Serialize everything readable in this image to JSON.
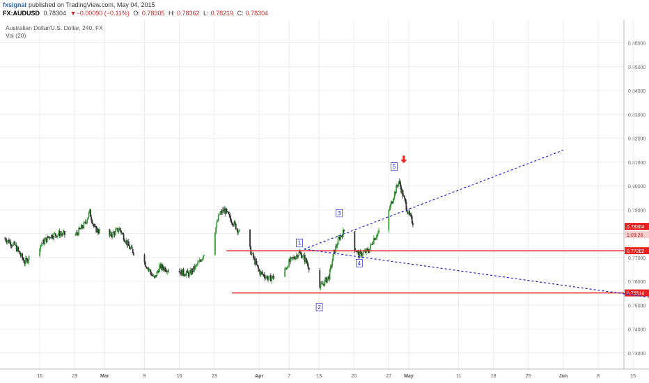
{
  "header": {
    "username": "fxsignal",
    "published": "published on TradingView.com, May 04, 2015",
    "symbol": "FX:AUDUSD",
    "price": "0.78304",
    "change": "▼−0.00090 (−0.11%)",
    "o_label": "O:",
    "o_value": "0.78305",
    "h_label": "H:",
    "h_value": "0.78362",
    "l_label": "L:",
    "l_value": "0.78219",
    "c_label": "C:",
    "c_value": "0.78304"
  },
  "legend": {
    "title": "Australian Dollar/U.S. Dollar, 240, FX",
    "volume": "Vol (20)"
  },
  "colors": {
    "up": "#3a9a3a",
    "down": "#2f2f2f",
    "trendline": "#1f1fd0",
    "level": "#e8201e",
    "arrow": "#e8201e",
    "grid": "#ececec"
  },
  "chart_data": {
    "type": "candlestick",
    "xaxis_ticks": [
      "16",
      "23",
      "Mar",
      "9",
      "16",
      "23",
      "Apr",
      "7",
      "13",
      "20",
      "27",
      "May",
      "11",
      "18",
      "25",
      "Jun",
      "8",
      "15"
    ],
    "ylim": [
      0.725,
      0.865
    ],
    "yaxis_ticks": [
      "0.86000",
      "0.85000",
      "0.84000",
      "0.83000",
      "0.82000",
      "0.81000",
      "0.80000",
      "0.79000",
      "0.78000",
      "0.77000",
      "0.76000",
      "0.75000",
      "0.74000",
      "0.73000"
    ],
    "price_path": [
      [
        "Feb 09",
        0.778
      ],
      [
        "Feb 11",
        0.775
      ],
      [
        "Feb 13",
        0.768
      ],
      [
        "Feb 16",
        0.775
      ],
      [
        "Feb 18",
        0.779
      ],
      [
        "Feb 20",
        0.78
      ],
      [
        "Feb 23",
        0.779
      ],
      [
        "Feb 25",
        0.784
      ],
      [
        "Feb 26",
        0.789
      ],
      [
        "Feb 27",
        0.782
      ],
      [
        "Mar 02",
        0.779
      ],
      [
        "Mar 04",
        0.782
      ],
      [
        "Mar 06",
        0.774
      ],
      [
        "Mar 09",
        0.768
      ],
      [
        "Mar 11",
        0.761
      ],
      [
        "Mar 12",
        0.766
      ],
      [
        "Mar 16",
        0.764
      ],
      [
        "Mar 18",
        0.763
      ],
      [
        "Mar 20",
        0.768
      ],
      [
        "Mar 23",
        0.78
      ],
      [
        "Mar 24",
        0.788
      ],
      [
        "Mar 25",
        0.79
      ],
      [
        "Mar 27",
        0.784
      ],
      [
        "Mar 30",
        0.774
      ],
      [
        "Apr 01",
        0.764
      ],
      [
        "Apr 03",
        0.761
      ],
      [
        "Apr 06",
        0.764
      ],
      [
        "Apr 07",
        0.768
      ],
      [
        "Apr 09",
        0.772
      ],
      [
        "Apr 10",
        0.77
      ],
      [
        "Apr 12",
        0.762
      ],
      [
        "Apr 13",
        0.757
      ],
      [
        "Apr 15",
        0.762
      ],
      [
        "Apr 16",
        0.772
      ],
      [
        "Apr 17",
        0.778
      ],
      [
        "Apr 18",
        0.781
      ],
      [
        "Apr 19",
        0.778
      ],
      [
        "Apr 21",
        0.771
      ],
      [
        "Apr 23",
        0.773
      ],
      [
        "Apr 24",
        0.778
      ],
      [
        "Apr 26",
        0.783
      ],
      [
        "Apr 28",
        0.796
      ],
      [
        "Apr 29",
        0.802
      ],
      [
        "Apr 30",
        0.795
      ],
      [
        "May 01",
        0.788
      ],
      [
        "May 02",
        0.784
      ],
      [
        "May 04",
        0.783
      ]
    ],
    "horizontal_levels": [
      {
        "label": "0.77282",
        "value": 0.77282
      },
      {
        "label": "0.75514",
        "value": 0.75514
      }
    ],
    "current_price": {
      "label": "0.78304",
      "value": 0.78304
    },
    "bar_countdown": {
      "label": "1:09:26",
      "value": 0.781
    },
    "trendlines": [
      {
        "from": [
          "Apr 10",
          0.7735
        ],
        "to": [
          "Jun 01",
          0.815
        ],
        "style": "dashed"
      },
      {
        "from": [
          "Apr 10",
          0.7735
        ],
        "to": [
          "Jun 21",
          0.7525
        ],
        "style": "dashed"
      }
    ],
    "wave_labels": [
      {
        "label": "1",
        "at": [
          "Apr 09",
          0.776
        ]
      },
      {
        "label": "2",
        "at": [
          "Apr 13",
          0.749
        ]
      },
      {
        "label": "3",
        "at": [
          "Apr 17",
          0.7885
        ]
      },
      {
        "label": "4",
        "at": [
          "Apr 21",
          0.7675
        ]
      },
      {
        "label": "5",
        "at": [
          "Apr 28",
          0.808
        ]
      }
    ],
    "arrow": {
      "at": [
        "Apr 30",
        0.811
      ],
      "direction": "down"
    }
  }
}
